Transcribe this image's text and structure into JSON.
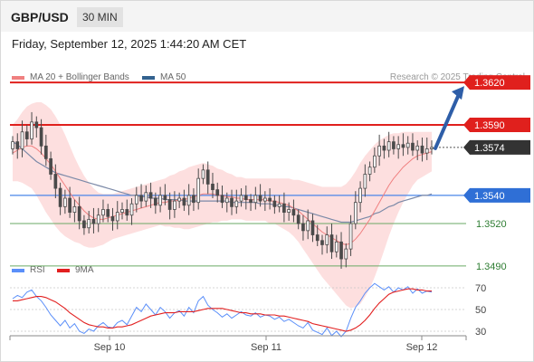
{
  "header": {
    "pair": "GBP/USD",
    "timeframe": "30 MIN"
  },
  "timestamp": "Friday, September 12, 2025 1:44:20 AM CET",
  "legend": {
    "ma20": "MA 20 + Bollinger Bands",
    "ma50": "MA 50",
    "copyright": "Research © 2025 Trading Central"
  },
  "rsi_legend": {
    "rsi": "RSI",
    "ma9": "9MA"
  },
  "colors": {
    "resistance": "#e0201d",
    "support_main": "#4a86e8",
    "support": "#6aaa64",
    "candle": "#4a4a4a",
    "ma20": "#f08080",
    "band": "#fcd4d4",
    "ma50": "#33628f",
    "rsi": "#5b8ff9",
    "rsi_ma": "#e22020",
    "arrow": "#2e5ea8",
    "last": "#333333"
  },
  "chart_data": [
    {
      "type": "candlestick",
      "title": "GBP/USD",
      "x_labels": [
        "Sep 10",
        "Sep 11",
        "Sep 12"
      ],
      "ylim": [
        1.347,
        1.364
      ],
      "close": [
        1.3578,
        1.3573,
        1.3585,
        1.358,
        1.3592,
        1.3588,
        1.3575,
        1.3566,
        1.3555,
        1.3545,
        1.3532,
        1.3538,
        1.3528,
        1.3532,
        1.3522,
        1.3517,
        1.3523,
        1.352,
        1.3526,
        1.353,
        1.3525,
        1.3522,
        1.3528,
        1.353,
        1.3526,
        1.3534,
        1.354,
        1.3536,
        1.3542,
        1.3538,
        1.3533,
        1.354,
        1.3537,
        1.353,
        1.3536,
        1.3538,
        1.3533,
        1.354,
        1.3535,
        1.3552,
        1.3558,
        1.3548,
        1.3544,
        1.354,
        1.3535,
        1.3538,
        1.3532,
        1.3536,
        1.354,
        1.3537,
        1.3535,
        1.354,
        1.3536,
        1.3538,
        1.3536,
        1.3532,
        1.3534,
        1.3528,
        1.353,
        1.3526,
        1.352,
        1.3515,
        1.3522,
        1.3512,
        1.3508,
        1.3505,
        1.3512,
        1.35,
        1.3507,
        1.3495,
        1.3502,
        1.352,
        1.3535,
        1.3545,
        1.3555,
        1.356,
        1.3568,
        1.3575,
        1.3572,
        1.3578,
        1.3573,
        1.3576,
        1.3574,
        1.3577,
        1.3572,
        1.3575,
        1.357,
        1.3573,
        1.3574
      ],
      "ma20": [
        1.357,
        1.3572,
        1.3574,
        1.3575,
        1.3575,
        1.3573,
        1.357,
        1.3566,
        1.3562,
        1.3557,
        1.3552,
        1.3547,
        1.3542,
        1.3537,
        1.3533,
        1.3529,
        1.3526,
        1.3524,
        1.3523,
        1.3523,
        1.3524,
        1.3525,
        1.3526,
        1.3527,
        1.3528,
        1.3529,
        1.353,
        1.3531,
        1.3532,
        1.3533,
        1.3534,
        1.3535,
        1.3535,
        1.3536,
        1.3536,
        1.3537,
        1.3537,
        1.3538,
        1.3539,
        1.354,
        1.3541,
        1.3541,
        1.3541,
        1.354,
        1.354,
        1.3539,
        1.3539,
        1.3538,
        1.3538,
        1.3537,
        1.3537,
        1.3537,
        1.3537,
        1.3537,
        1.3536,
        1.3536,
        1.3535,
        1.3534,
        1.3533,
        1.3531,
        1.3529,
        1.3526,
        1.3523,
        1.352,
        1.3517,
        1.3514,
        1.3512,
        1.351,
        1.3508,
        1.3506,
        1.3505,
        1.3506,
        1.3509,
        1.3513,
        1.3518,
        1.3523,
        1.3529,
        1.3535,
        1.3541,
        1.3547,
        1.3552,
        1.3556,
        1.356,
        1.3563,
        1.3566,
        1.3568,
        1.3569,
        1.357,
        1.3571
      ],
      "ma50": [
        1.3578,
        1.3576,
        1.3573,
        1.357,
        1.3567,
        1.3564,
        1.3562,
        1.356,
        1.3558,
        1.3556,
        1.3555,
        1.3554,
        1.3553,
        1.3552,
        1.3551,
        1.355,
        1.3549,
        1.3548,
        1.3547,
        1.3546,
        1.3545,
        1.3544,
        1.3543,
        1.3542,
        1.3541,
        1.354,
        1.354,
        1.3539,
        1.3539,
        1.3538,
        1.3538,
        1.3538,
        1.3537,
        1.3537,
        1.3537,
        1.3537,
        1.3536,
        1.3536,
        1.3536,
        1.3536,
        1.3536,
        1.3536,
        1.3536,
        1.3536,
        1.3536,
        1.3536,
        1.3535,
        1.3535,
        1.3535,
        1.3535,
        1.3535,
        1.3535,
        1.3534,
        1.3534,
        1.3534,
        1.3533,
        1.3533,
        1.3532,
        1.3532,
        1.3531,
        1.353,
        1.3529,
        1.3528,
        1.3527,
        1.3526,
        1.3525,
        1.3524,
        1.3523,
        1.3522,
        1.3521,
        1.3521,
        1.3521,
        1.3522,
        1.3523,
        1.3524,
        1.3525,
        1.3527,
        1.3528,
        1.353,
        1.3532,
        1.3533,
        1.3535,
        1.3536,
        1.3537,
        1.3538,
        1.3539,
        1.354,
        1.354,
        1.3541
      ],
      "band_width": [
        0.002,
        0.0022,
        0.0025,
        0.0028,
        0.003,
        0.0033,
        0.0036,
        0.0038,
        0.0039,
        0.0039,
        0.0038,
        0.0036,
        0.0033,
        0.003,
        0.0027,
        0.0025,
        0.0023,
        0.0021,
        0.0019,
        0.0018,
        0.0017,
        0.0016,
        0.0016,
        0.0016,
        0.0016,
        0.0016,
        0.0016,
        0.0016,
        0.0016,
        0.0016,
        0.0016,
        0.0016,
        0.0017,
        0.0018,
        0.0019,
        0.002,
        0.0021,
        0.0022,
        0.0022,
        0.0022,
        0.0022,
        0.0021,
        0.002,
        0.0019,
        0.0018,
        0.0017,
        0.0016,
        0.0015,
        0.0015,
        0.0015,
        0.0015,
        0.0015,
        0.0015,
        0.0015,
        0.0016,
        0.0016,
        0.0017,
        0.0018,
        0.0019,
        0.002,
        0.0022,
        0.0024,
        0.0026,
        0.0028,
        0.003,
        0.0032,
        0.0034,
        0.0036,
        0.0038,
        0.004,
        0.0043,
        0.0046,
        0.0048,
        0.005,
        0.005,
        0.0049,
        0.0047,
        0.0044,
        0.004,
        0.0036,
        0.0032,
        0.0028,
        0.0025,
        0.0022,
        0.0019,
        0.0017,
        0.0016,
        0.0015,
        0.0014
      ],
      "levels": [
        {
          "label": "1.3620",
          "value": 1.362,
          "kind": "resistance"
        },
        {
          "label": "1.3590",
          "value": 1.359,
          "kind": "resistance"
        },
        {
          "label": "1.3540",
          "value": 1.354,
          "kind": "support_main"
        },
        {
          "label": "1.3520",
          "value": 1.352,
          "kind": "support"
        },
        {
          "label": "1.3490",
          "value": 1.349,
          "kind": "support"
        }
      ],
      "last_price": {
        "label": "1.3574",
        "value": 1.3574
      },
      "projection_target": 1.362
    },
    {
      "type": "line",
      "title": "RSI",
      "ylim": [
        20,
        85
      ],
      "yticks": [
        "70",
        "50",
        "30"
      ],
      "series": [
        {
          "name": "RSI",
          "values": [
            60,
            63,
            61,
            66,
            68,
            62,
            58,
            52,
            45,
            40,
            35,
            40,
            33,
            37,
            30,
            28,
            32,
            30,
            35,
            38,
            34,
            33,
            38,
            40,
            36,
            44,
            52,
            48,
            55,
            50,
            45,
            52,
            48,
            42,
            47,
            49,
            44,
            52,
            47,
            58,
            62,
            54,
            50,
            47,
            43,
            46,
            42,
            45,
            48,
            45,
            44,
            47,
            43,
            45,
            44,
            41,
            43,
            39,
            41,
            38,
            35,
            33,
            38,
            31,
            29,
            27,
            33,
            26,
            30,
            25,
            30,
            42,
            52,
            58,
            65,
            70,
            74,
            71,
            68,
            71,
            66,
            70,
            68,
            71,
            65,
            69,
            65,
            67,
            66
          ]
        },
        {
          "name": "9MA",
          "values": [
            58,
            58,
            59,
            60,
            61,
            62,
            62,
            61,
            59,
            57,
            54,
            51,
            47,
            44,
            41,
            38,
            36,
            35,
            34,
            34,
            33,
            33,
            34,
            34,
            35,
            36,
            38,
            40,
            42,
            44,
            45,
            46,
            47,
            47,
            47,
            48,
            48,
            48,
            48,
            49,
            50,
            51,
            51,
            51,
            51,
            50,
            49,
            48,
            47,
            47,
            46,
            46,
            46,
            45,
            45,
            45,
            44,
            44,
            43,
            42,
            41,
            40,
            39,
            37,
            36,
            35,
            34,
            33,
            32,
            31,
            30,
            31,
            33,
            36,
            40,
            45,
            51,
            56,
            60,
            64,
            66,
            67,
            68,
            69,
            69,
            68,
            68,
            67,
            67
          ]
        }
      ]
    }
  ]
}
